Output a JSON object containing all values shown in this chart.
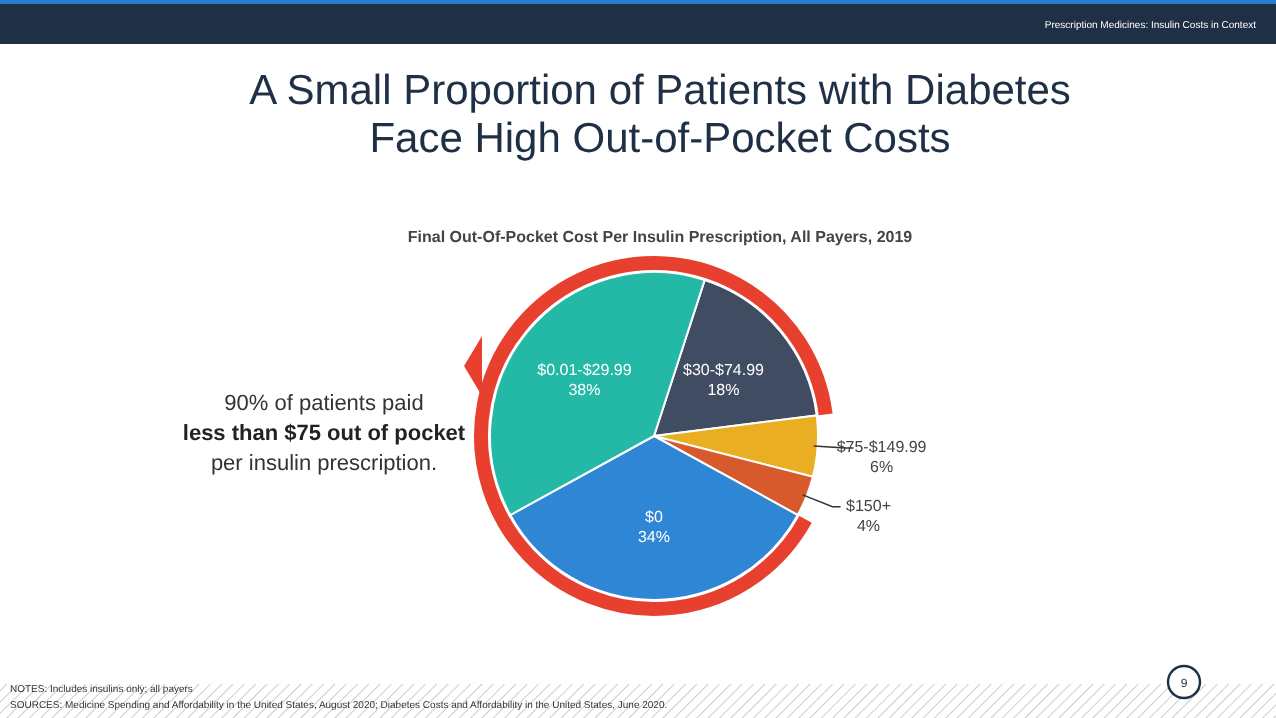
{
  "chart_data": {
    "type": "pie",
    "title": "A Small Proportion of Patients with Diabetes Face High Out-of-Pocket Costs",
    "subtitle": "Final Out-Of-Pocket Cost Per Insulin Prescription, All Payers, 2019",
    "categories": [
      "$30-$74.99",
      "$75-$149.99",
      "$150+",
      "$0",
      "$0.01-$29.99"
    ],
    "values": [
      18,
      6,
      4,
      34,
      38
    ],
    "colors": [
      "#3f4c61",
      "#e9ae22",
      "#d65a2c",
      "#2f86d4",
      "#24b9a7"
    ],
    "value_labels": [
      "18%",
      "6%",
      "4%",
      "34%",
      "38%"
    ],
    "annotations": [
      "90% of patients paid",
      "less than $75 out of pocket",
      "per insulin prescription.",
      "Prescription Medicines: Insulin Costs in Context",
      "NOTES: Includes insulins only; all payers",
      "SOURCES: Medicine Spending and Affordability in the United States, August 2020; Diabetes Costs and Affordability in the United States, June 2020.",
      "9"
    ]
  }
}
